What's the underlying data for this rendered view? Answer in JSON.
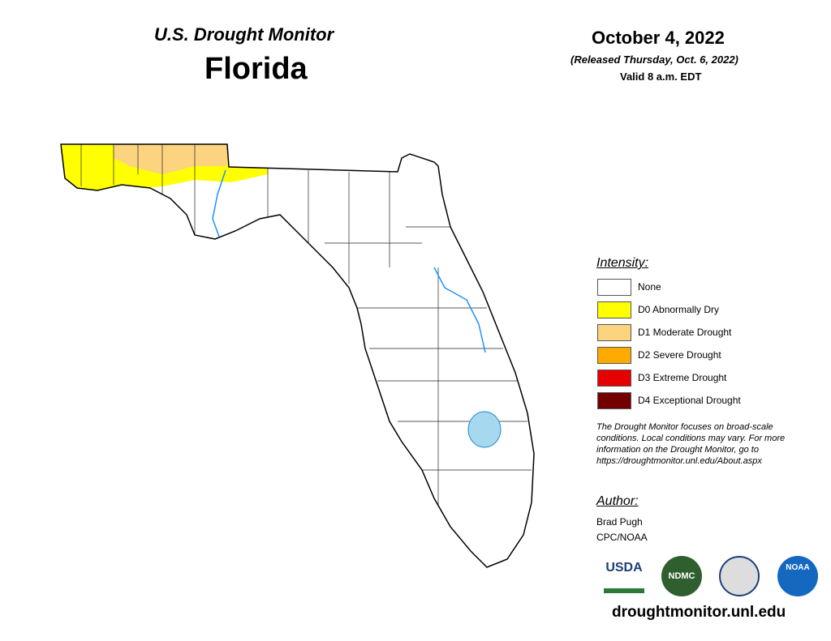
{
  "header": {
    "title": "U.S. Drought Monitor",
    "state": "Florida",
    "date": "October 4, 2022",
    "released": "(Released Thursday, Oct. 6, 2022)",
    "valid": "Valid 8 a.m. EDT"
  },
  "legend": {
    "title": "Intensity:",
    "items": [
      {
        "label": "None",
        "color": "#ffffff"
      },
      {
        "label": "D0 Abnormally Dry",
        "color": "#ffff00"
      },
      {
        "label": "D1 Moderate Drought",
        "color": "#fcd37f"
      },
      {
        "label": "D2 Severe Drought",
        "color": "#ffaa00"
      },
      {
        "label": "D3 Extreme Drought",
        "color": "#e60000"
      },
      {
        "label": "D4 Exceptional Drought",
        "color": "#730000"
      }
    ]
  },
  "note": [
    "The Drought Monitor focuses on broad-scale",
    "conditions. Local conditions may vary. For more",
    "information on the Drought Monitor, go to",
    "https://droughtmonitor.unl.edu/About.aspx"
  ],
  "author": {
    "title": "Author:",
    "name": "Brad Pugh",
    "org": "CPC/NOAA"
  },
  "logos": [
    "USDA",
    "NDMC",
    "NOAA"
  ],
  "url": "droughtmonitor.unl.edu"
}
